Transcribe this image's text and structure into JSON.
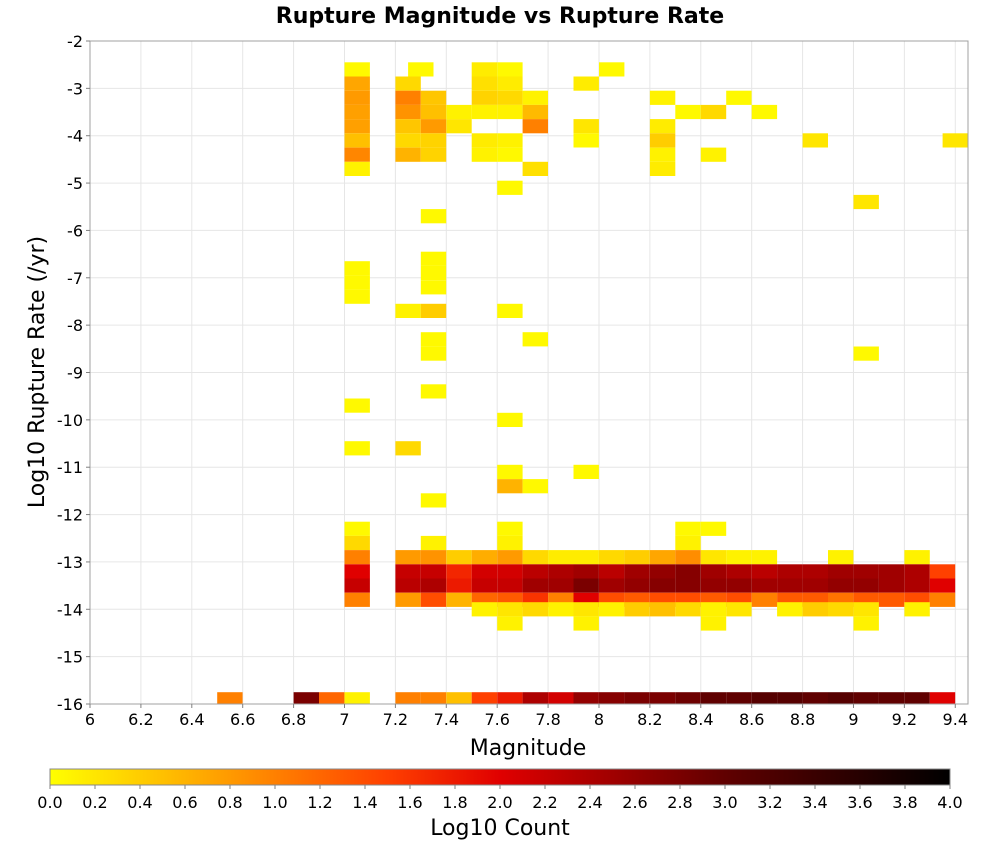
{
  "chart_data": {
    "type": "heatmap",
    "title": "Rupture Magnitude vs Rupture Rate",
    "xlabel": "Magnitude",
    "ylabel": "Log10 Rupture Rate (/yr)",
    "xlim": [
      6.0,
      9.45
    ],
    "ylim": [
      -16,
      -2
    ],
    "x_bin_width": 0.1,
    "y_bin_height": 0.3,
    "x_ticks": [
      "6",
      "6.2",
      "6.4",
      "6.6",
      "6.8",
      "7",
      "7.2",
      "7.4",
      "7.6",
      "7.8",
      "8",
      "8.2",
      "8.4",
      "8.6",
      "8.8",
      "9",
      "9.2",
      "9.4"
    ],
    "y_ticks": [
      "-2",
      "-3",
      "-4",
      "-5",
      "-6",
      "-7",
      "-8",
      "-9",
      "-10",
      "-11",
      "-12",
      "-13",
      "-14",
      "-15",
      "-16"
    ],
    "grid": true,
    "colorbar": {
      "label": "Log10 Count",
      "range": [
        0.0,
        4.0
      ],
      "ticks": [
        "0.0",
        "0.2",
        "0.4",
        "0.6",
        "0.8",
        "1.0",
        "1.2",
        "1.4",
        "1.6",
        "1.8",
        "2.0",
        "2.2",
        "2.4",
        "2.6",
        "2.8",
        "3.0",
        "3.2",
        "3.4",
        "3.6",
        "3.8",
        "4.0"
      ],
      "colors": [
        "#ffff00",
        "#ffc000",
        "#ff8000",
        "#ff4000",
        "#e00000",
        "#a00000",
        "#600000",
        "#300000",
        "#000000"
      ]
    },
    "cells": [
      [
        7.05,
        -2.6,
        0.05
      ],
      [
        7.3,
        -2.6,
        0.05
      ],
      [
        7.55,
        -2.6,
        0.15
      ],
      [
        7.65,
        -2.6,
        0.05
      ],
      [
        8.05,
        -2.6,
        0.05
      ],
      [
        7.05,
        -2.9,
        0.7
      ],
      [
        7.25,
        -2.9,
        0.3
      ],
      [
        7.55,
        -2.9,
        0.25
      ],
      [
        7.65,
        -2.9,
        0.15
      ],
      [
        7.95,
        -2.9,
        0.15
      ],
      [
        7.05,
        -3.2,
        0.8
      ],
      [
        7.25,
        -3.2,
        1.0
      ],
      [
        7.35,
        -3.2,
        0.45
      ],
      [
        7.55,
        -3.2,
        0.35
      ],
      [
        7.65,
        -3.2,
        0.3
      ],
      [
        7.75,
        -3.2,
        0.1
      ],
      [
        8.25,
        -3.2,
        0.1
      ],
      [
        8.55,
        -3.2,
        0.05
      ],
      [
        7.05,
        -3.5,
        0.75
      ],
      [
        7.25,
        -3.5,
        0.85
      ],
      [
        7.35,
        -3.5,
        0.5
      ],
      [
        7.45,
        -3.5,
        0.1
      ],
      [
        7.55,
        -3.5,
        0.1
      ],
      [
        7.65,
        -3.5,
        0.1
      ],
      [
        7.75,
        -3.5,
        0.55
      ],
      [
        8.35,
        -3.5,
        0.05
      ],
      [
        8.45,
        -3.5,
        0.3
      ],
      [
        8.65,
        -3.5,
        0.05
      ],
      [
        7.05,
        -3.8,
        0.75
      ],
      [
        7.25,
        -3.8,
        0.45
      ],
      [
        7.35,
        -3.8,
        0.8
      ],
      [
        7.45,
        -3.8,
        0.2
      ],
      [
        7.75,
        -3.8,
        1.0
      ],
      [
        7.95,
        -3.8,
        0.2
      ],
      [
        8.25,
        -3.8,
        0.15
      ],
      [
        7.05,
        -4.1,
        0.5
      ],
      [
        7.25,
        -4.1,
        0.3
      ],
      [
        7.35,
        -4.1,
        0.35
      ],
      [
        7.55,
        -4.1,
        0.15
      ],
      [
        7.65,
        -4.1,
        0.1
      ],
      [
        7.95,
        -4.1,
        0.05
      ],
      [
        8.25,
        -4.1,
        0.4
      ],
      [
        8.85,
        -4.1,
        0.2
      ],
      [
        9.4,
        -4.1,
        0.2
      ],
      [
        7.05,
        -4.4,
        0.95
      ],
      [
        7.25,
        -4.4,
        0.6
      ],
      [
        7.35,
        -4.4,
        0.35
      ],
      [
        7.55,
        -4.4,
        0.1
      ],
      [
        7.65,
        -4.4,
        0.05
      ],
      [
        8.25,
        -4.4,
        0.1
      ],
      [
        8.45,
        -4.4,
        0.1
      ],
      [
        7.05,
        -4.7,
        0.1
      ],
      [
        7.75,
        -4.7,
        0.25
      ],
      [
        8.25,
        -4.7,
        0.15
      ],
      [
        7.65,
        -5.1,
        0.05
      ],
      [
        9.05,
        -5.4,
        0.2
      ],
      [
        7.35,
        -5.7,
        0.05
      ],
      [
        7.35,
        -6.6,
        0.05
      ],
      [
        7.05,
        -6.8,
        0.05
      ],
      [
        7.35,
        -6.9,
        0.05
      ],
      [
        7.05,
        -7.1,
        0.05
      ],
      [
        7.35,
        -7.2,
        0.05
      ],
      [
        7.05,
        -7.4,
        0.05
      ],
      [
        7.25,
        -7.7,
        0.1
      ],
      [
        7.35,
        -7.7,
        0.4
      ],
      [
        7.65,
        -7.7,
        0.05
      ],
      [
        7.35,
        -8.3,
        0.05
      ],
      [
        7.75,
        -8.3,
        0.05
      ],
      [
        7.35,
        -8.6,
        0.05
      ],
      [
        9.05,
        -8.6,
        0.05
      ],
      [
        7.35,
        -9.4,
        0.05
      ],
      [
        7.05,
        -9.7,
        0.05
      ],
      [
        7.65,
        -10.0,
        0.05
      ],
      [
        7.05,
        -10.6,
        0.05
      ],
      [
        7.25,
        -10.6,
        0.3
      ],
      [
        7.65,
        -11.1,
        0.05
      ],
      [
        7.95,
        -11.1,
        0.05
      ],
      [
        7.65,
        -11.4,
        0.6
      ],
      [
        7.75,
        -11.4,
        0.05
      ],
      [
        7.35,
        -11.7,
        0.05
      ],
      [
        7.05,
        -12.3,
        0.05
      ],
      [
        7.65,
        -12.3,
        0.05
      ],
      [
        8.35,
        -12.3,
        0.05
      ],
      [
        8.45,
        -12.3,
        0.05
      ],
      [
        7.05,
        -12.6,
        0.3
      ],
      [
        7.35,
        -12.6,
        0.1
      ],
      [
        7.65,
        -12.6,
        0.1
      ],
      [
        8.35,
        -12.6,
        0.1
      ],
      [
        7.05,
        -12.9,
        1.0
      ],
      [
        7.25,
        -12.9,
        0.8
      ],
      [
        7.35,
        -12.9,
        0.85
      ],
      [
        7.45,
        -12.9,
        0.4
      ],
      [
        7.55,
        -12.9,
        0.65
      ],
      [
        7.65,
        -12.9,
        0.8
      ],
      [
        7.75,
        -12.9,
        0.3
      ],
      [
        7.85,
        -12.9,
        0.15
      ],
      [
        7.95,
        -12.9,
        0.15
      ],
      [
        8.05,
        -12.9,
        0.3
      ],
      [
        8.15,
        -12.9,
        0.4
      ],
      [
        8.25,
        -12.9,
        0.7
      ],
      [
        8.35,
        -12.9,
        0.9
      ],
      [
        8.45,
        -12.9,
        0.2
      ],
      [
        8.55,
        -12.9,
        0.1
      ],
      [
        8.65,
        -12.9,
        0.1
      ],
      [
        8.95,
        -12.9,
        0.1
      ],
      [
        9.25,
        -12.9,
        0.1
      ],
      [
        7.05,
        -13.2,
        2.0
      ],
      [
        7.25,
        -13.2,
        2.2
      ],
      [
        7.35,
        -13.2,
        2.2
      ],
      [
        7.45,
        -13.2,
        1.7
      ],
      [
        7.55,
        -13.2,
        2.1
      ],
      [
        7.65,
        -13.2,
        2.1
      ],
      [
        7.75,
        -13.2,
        2.3
      ],
      [
        7.85,
        -13.2,
        2.4
      ],
      [
        7.95,
        -13.2,
        2.5
      ],
      [
        8.05,
        -13.2,
        2.3
      ],
      [
        8.15,
        -13.2,
        2.5
      ],
      [
        8.25,
        -13.2,
        2.6
      ],
      [
        8.35,
        -13.2,
        2.7
      ],
      [
        8.45,
        -13.2,
        2.5
      ],
      [
        8.55,
        -13.2,
        2.4
      ],
      [
        8.65,
        -13.2,
        2.3
      ],
      [
        8.75,
        -13.2,
        2.4
      ],
      [
        8.85,
        -13.2,
        2.4
      ],
      [
        8.95,
        -13.2,
        2.5
      ],
      [
        9.05,
        -13.2,
        2.5
      ],
      [
        9.15,
        -13.2,
        2.5
      ],
      [
        9.25,
        -13.2,
        2.4
      ],
      [
        9.35,
        -13.2,
        1.5
      ],
      [
        7.05,
        -13.5,
        2.2
      ],
      [
        7.25,
        -13.5,
        2.3
      ],
      [
        7.35,
        -13.5,
        2.4
      ],
      [
        7.45,
        -13.5,
        1.8
      ],
      [
        7.55,
        -13.5,
        2.2
      ],
      [
        7.65,
        -13.5,
        2.2
      ],
      [
        7.75,
        -13.5,
        2.5
      ],
      [
        7.85,
        -13.5,
        2.5
      ],
      [
        7.95,
        -13.5,
        2.8
      ],
      [
        8.05,
        -13.5,
        2.5
      ],
      [
        8.15,
        -13.5,
        2.6
      ],
      [
        8.25,
        -13.5,
        2.7
      ],
      [
        8.35,
        -13.5,
        2.7
      ],
      [
        8.45,
        -13.5,
        2.6
      ],
      [
        8.55,
        -13.5,
        2.6
      ],
      [
        8.65,
        -13.5,
        2.5
      ],
      [
        8.75,
        -13.5,
        2.5
      ],
      [
        8.85,
        -13.5,
        2.5
      ],
      [
        8.95,
        -13.5,
        2.6
      ],
      [
        9.05,
        -13.5,
        2.6
      ],
      [
        9.15,
        -13.5,
        2.5
      ],
      [
        9.25,
        -13.5,
        2.4
      ],
      [
        9.35,
        -13.5,
        2.0
      ],
      [
        7.05,
        -13.8,
        1.0
      ],
      [
        7.25,
        -13.8,
        0.8
      ],
      [
        7.35,
        -13.8,
        1.4
      ],
      [
        7.45,
        -13.8,
        0.6
      ],
      [
        7.55,
        -13.8,
        1.2
      ],
      [
        7.65,
        -13.8,
        1.3
      ],
      [
        7.75,
        -13.8,
        1.6
      ],
      [
        7.85,
        -13.8,
        1.0
      ],
      [
        7.95,
        -13.8,
        2.0
      ],
      [
        8.05,
        -13.8,
        1.4
      ],
      [
        8.15,
        -13.8,
        1.3
      ],
      [
        8.25,
        -13.8,
        1.4
      ],
      [
        8.35,
        -13.8,
        1.4
      ],
      [
        8.45,
        -13.8,
        1.3
      ],
      [
        8.55,
        -13.8,
        1.4
      ],
      [
        8.65,
        -13.8,
        1.0
      ],
      [
        8.75,
        -13.8,
        1.3
      ],
      [
        8.85,
        -13.8,
        1.3
      ],
      [
        8.95,
        -13.8,
        1.1
      ],
      [
        9.05,
        -13.8,
        1.3
      ],
      [
        9.15,
        -13.8,
        1.3
      ],
      [
        9.25,
        -13.8,
        1.4
      ],
      [
        9.35,
        -13.8,
        1.0
      ],
      [
        7.55,
        -14.0,
        0.1
      ],
      [
        7.65,
        -14.0,
        0.2
      ],
      [
        7.75,
        -14.0,
        0.3
      ],
      [
        7.85,
        -14.0,
        0.1
      ],
      [
        7.95,
        -14.0,
        0.2
      ],
      [
        8.05,
        -14.0,
        0.1
      ],
      [
        8.15,
        -14.0,
        0.4
      ],
      [
        8.25,
        -14.0,
        0.5
      ],
      [
        8.35,
        -14.0,
        0.3
      ],
      [
        8.45,
        -14.0,
        0.1
      ],
      [
        8.55,
        -14.0,
        0.2
      ],
      [
        8.75,
        -14.0,
        0.1
      ],
      [
        8.85,
        -14.0,
        0.4
      ],
      [
        8.95,
        -14.0,
        0.3
      ],
      [
        9.05,
        -14.0,
        0.2
      ],
      [
        9.25,
        -14.0,
        0.1
      ],
      [
        7.65,
        -14.3,
        0.1
      ],
      [
        7.95,
        -14.3,
        0.1
      ],
      [
        8.45,
        -14.3,
        0.1
      ],
      [
        9.05,
        -14.3,
        0.1
      ],
      [
        6.55,
        -15.9,
        1.0
      ],
      [
        6.85,
        -15.9,
        2.8
      ],
      [
        6.95,
        -15.9,
        1.2
      ],
      [
        7.05,
        -15.9,
        0.1
      ],
      [
        7.25,
        -15.9,
        1.0
      ],
      [
        7.35,
        -15.9,
        1.0
      ],
      [
        7.45,
        -15.9,
        0.5
      ],
      [
        7.55,
        -15.9,
        1.5
      ],
      [
        7.65,
        -15.9,
        1.8
      ],
      [
        7.75,
        -15.9,
        2.4
      ],
      [
        7.85,
        -15.9,
        2.1
      ],
      [
        7.95,
        -15.9,
        2.6
      ],
      [
        8.05,
        -15.9,
        2.7
      ],
      [
        8.15,
        -15.9,
        2.8
      ],
      [
        8.25,
        -15.9,
        2.8
      ],
      [
        8.35,
        -15.9,
        2.9
      ],
      [
        8.45,
        -15.9,
        3.0
      ],
      [
        8.55,
        -15.9,
        3.0
      ],
      [
        8.65,
        -15.9,
        3.1
      ],
      [
        8.75,
        -15.9,
        3.1
      ],
      [
        8.85,
        -15.9,
        3.0
      ],
      [
        8.95,
        -15.9,
        3.1
      ],
      [
        9.05,
        -15.9,
        3.0
      ],
      [
        9.15,
        -15.9,
        3.0
      ],
      [
        9.25,
        -15.9,
        3.0
      ],
      [
        9.35,
        -15.9,
        2.0
      ]
    ]
  }
}
